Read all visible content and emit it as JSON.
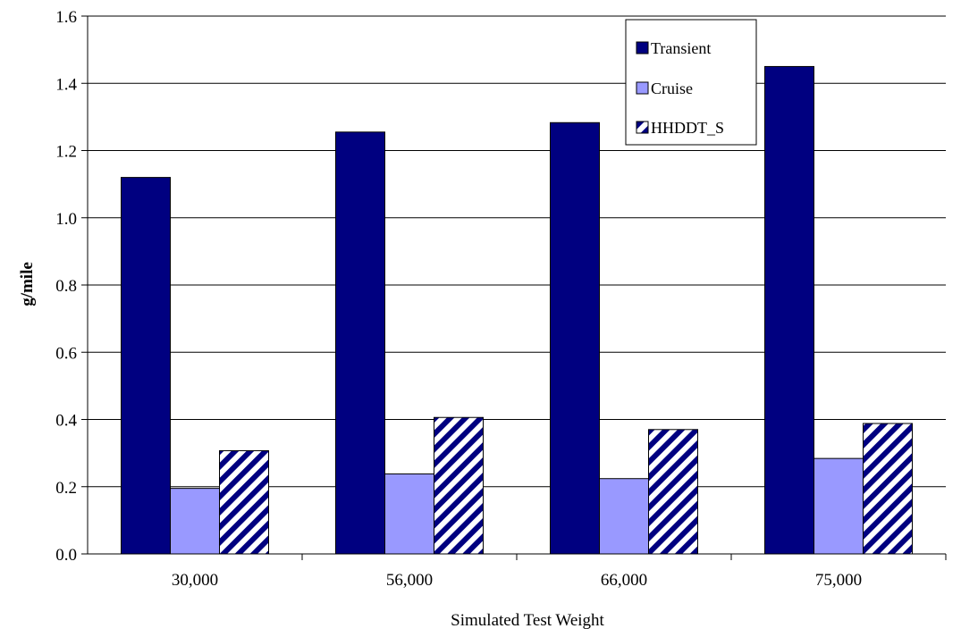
{
  "chart_data": {
    "type": "bar",
    "title": "",
    "xlabel": "Simulated Test Weight",
    "ylabel": "g/mile",
    "categories": [
      "30,000",
      "56,000",
      "66,000",
      "75,000"
    ],
    "ylim": [
      0,
      1.6
    ],
    "yticks": [
      "0.0",
      "0.2",
      "0.4",
      "0.6",
      "0.8",
      "1.0",
      "1.2",
      "1.4",
      "1.6"
    ],
    "grid": true,
    "legend_position": "top-right",
    "series": [
      {
        "name": "Transient",
        "values": [
          1.12,
          1.255,
          1.283,
          1.45
        ],
        "color": "#000080",
        "pattern": "solid"
      },
      {
        "name": "Cruise",
        "values": [
          0.195,
          0.238,
          0.224,
          0.284
        ],
        "color": "#9999ff",
        "pattern": "solid"
      },
      {
        "name": "HHDDT_S",
        "values": [
          0.307,
          0.406,
          0.37,
          0.388
        ],
        "color": "#000080",
        "pattern": "diagonal-stripes"
      }
    ]
  }
}
